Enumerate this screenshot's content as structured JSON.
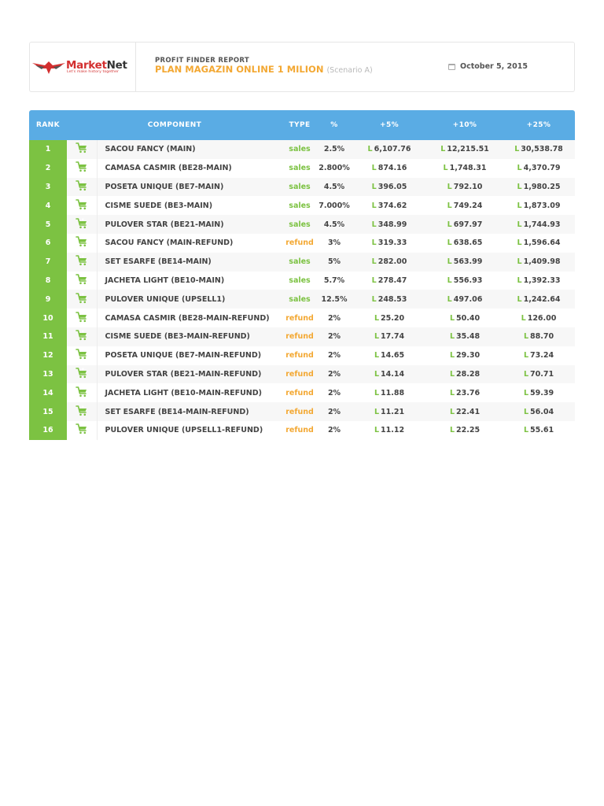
{
  "header": {
    "logo_brand_a": "Market",
    "logo_brand_b": "Net",
    "logo_tagline": "Let's make history together",
    "report_label": "PROFIT FINDER REPORT",
    "plan_title": "PLAN MAGAZIN ONLINE 1 MILION",
    "scenario": "(Scenario A)",
    "date": "October 5, 2015",
    "calendar_icon": "calendar-icon"
  },
  "colors": {
    "header_blue": "#5aace4",
    "rank_green": "#7cc242",
    "sales_green": "#7cc242",
    "refund_orange": "#f3a833",
    "title_orange": "#f3a833",
    "logo_red": "#d32f2f"
  },
  "table": {
    "columns": {
      "rank": "RANK",
      "component": "COMPONENT",
      "type": "TYPE",
      "pct": "%",
      "p5": "+5%",
      "p10": "+10%",
      "p25": "+25%"
    },
    "currency_symbol": "L",
    "row_icon": "cart-add-icon",
    "rows": [
      {
        "rank": "1",
        "component": "SACOU FANCY (MAIN)",
        "type": "sales",
        "pct": "2.5%",
        "p5": "6,107.76",
        "p10": "12,215.51",
        "p25": "30,538.78"
      },
      {
        "rank": "2",
        "component": "CAMASA CASMIR (BE28-MAIN)",
        "type": "sales",
        "pct": "2.800%",
        "p5": "874.16",
        "p10": "1,748.31",
        "p25": "4,370.79"
      },
      {
        "rank": "3",
        "component": "POSETA UNIQUE (BE7-MAIN)",
        "type": "sales",
        "pct": "4.5%",
        "p5": "396.05",
        "p10": "792.10",
        "p25": "1,980.25"
      },
      {
        "rank": "4",
        "component": "CISME SUEDE (BE3-MAIN)",
        "type": "sales",
        "pct": "7.000%",
        "p5": "374.62",
        "p10": "749.24",
        "p25": "1,873.09"
      },
      {
        "rank": "5",
        "component": "PULOVER STAR (BE21-MAIN)",
        "type": "sales",
        "pct": "4.5%",
        "p5": "348.99",
        "p10": "697.97",
        "p25": "1,744.93"
      },
      {
        "rank": "6",
        "component": "SACOU FANCY (MAIN-REFUND)",
        "type": "refund",
        "pct": "3%",
        "p5": "319.33",
        "p10": "638.65",
        "p25": "1,596.64"
      },
      {
        "rank": "7",
        "component": "SET ESARFE (BE14-MAIN)",
        "type": "sales",
        "pct": "5%",
        "p5": "282.00",
        "p10": "563.99",
        "p25": "1,409.98"
      },
      {
        "rank": "8",
        "component": "JACHETA LIGHT (BE10-MAIN)",
        "type": "sales",
        "pct": "5.7%",
        "p5": "278.47",
        "p10": "556.93",
        "p25": "1,392.33"
      },
      {
        "rank": "9",
        "component": "PULOVER UNIQUE (UPSELL1)",
        "type": "sales",
        "pct": "12.5%",
        "p5": "248.53",
        "p10": "497.06",
        "p25": "1,242.64"
      },
      {
        "rank": "10",
        "component": "CAMASA CASMIR (BE28-MAIN-REFUND)",
        "type": "refund",
        "pct": "2%",
        "p5": "25.20",
        "p10": "50.40",
        "p25": "126.00"
      },
      {
        "rank": "11",
        "component": "CISME SUEDE (BE3-MAIN-REFUND)",
        "type": "refund",
        "pct": "2%",
        "p5": "17.74",
        "p10": "35.48",
        "p25": "88.70"
      },
      {
        "rank": "12",
        "component": "POSETA UNIQUE (BE7-MAIN-REFUND)",
        "type": "refund",
        "pct": "2%",
        "p5": "14.65",
        "p10": "29.30",
        "p25": "73.24"
      },
      {
        "rank": "13",
        "component": "PULOVER STAR (BE21-MAIN-REFUND)",
        "type": "refund",
        "pct": "2%",
        "p5": "14.14",
        "p10": "28.28",
        "p25": "70.71"
      },
      {
        "rank": "14",
        "component": "JACHETA LIGHT (BE10-MAIN-REFUND)",
        "type": "refund",
        "pct": "2%",
        "p5": "11.88",
        "p10": "23.76",
        "p25": "59.39"
      },
      {
        "rank": "15",
        "component": "SET ESARFE (BE14-MAIN-REFUND)",
        "type": "refund",
        "pct": "2%",
        "p5": "11.21",
        "p10": "22.41",
        "p25": "56.04"
      },
      {
        "rank": "16",
        "component": "PULOVER UNIQUE (UPSELL1-REFUND)",
        "type": "refund",
        "pct": "2%",
        "p5": "11.12",
        "p10": "22.25",
        "p25": "55.61"
      }
    ]
  }
}
